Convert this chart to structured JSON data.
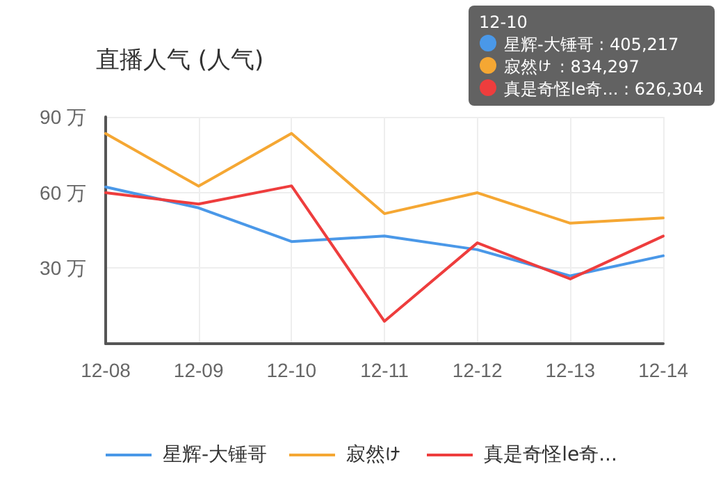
{
  "chart_data": {
    "type": "line",
    "title": "直播人气 (人气)",
    "categories": [
      "12-08",
      "12-09",
      "12-10",
      "12-11",
      "12-12",
      "12-13",
      "12-14"
    ],
    "series": [
      {
        "name": "星辉-大锤哥",
        "color": "#4a98e8",
        "values": [
          62.2,
          53.9,
          40.52,
          42.7,
          37.3,
          26.9,
          34.9
        ]
      },
      {
        "name": "寂然ゖ",
        "color": "#f5a733",
        "values": [
          83.4,
          62.5,
          83.43,
          51.6,
          59.9,
          47.8,
          49.9
        ]
      },
      {
        "name": "真是奇怪le奇...",
        "color": "#ee3d3d",
        "values": [
          59.9,
          55.4,
          62.63,
          8.9,
          40.0,
          25.7,
          42.7
        ]
      }
    ],
    "ylim": [
      0,
      90
    ],
    "yticks": [
      {
        "value": 0,
        "label": null
      },
      {
        "value": 30,
        "label": "30 万"
      },
      {
        "value": 60,
        "label": "60 万"
      },
      {
        "value": 90,
        "label": "90 万"
      }
    ],
    "grid": true,
    "legend": "bottom",
    "marker": "none",
    "line_style": "solid",
    "annotations": [
      "12-10",
      "星辉-大锤哥 : 405,217",
      "寂然ゖ : 834,297",
      "真是奇怪le奇... : 626,304"
    ]
  }
}
